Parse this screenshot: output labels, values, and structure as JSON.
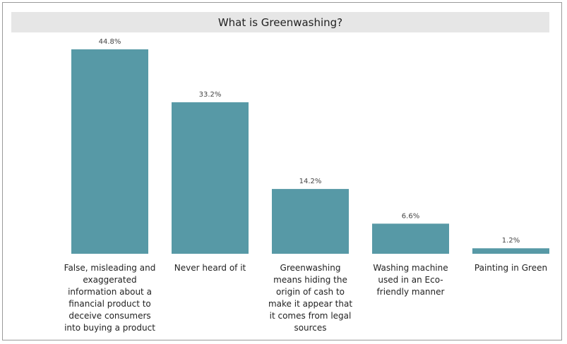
{
  "chart_data": {
    "type": "bar",
    "title": "What is Greenwashing?",
    "categories": [
      "False, misleading and exaggerated information about a financial product to deceive consumers into buying a product",
      "Never heard of it",
      "Greenwashing means hiding the origin of cash to make it appear that it comes from legal sources",
      "Washing machine used in an Eco-friendly manner",
      "Painting in Green"
    ],
    "values": [
      44.8,
      33.2,
      14.2,
      6.6,
      1.2
    ],
    "data_labels": [
      "44.8%",
      "33.2%",
      "14.2%",
      "6.6%",
      "1.2%"
    ],
    "xlabel": "",
    "ylabel": "",
    "ylim": [
      0,
      44.8
    ],
    "grid": false,
    "legend": "none",
    "bar_color": "#5799a6"
  }
}
